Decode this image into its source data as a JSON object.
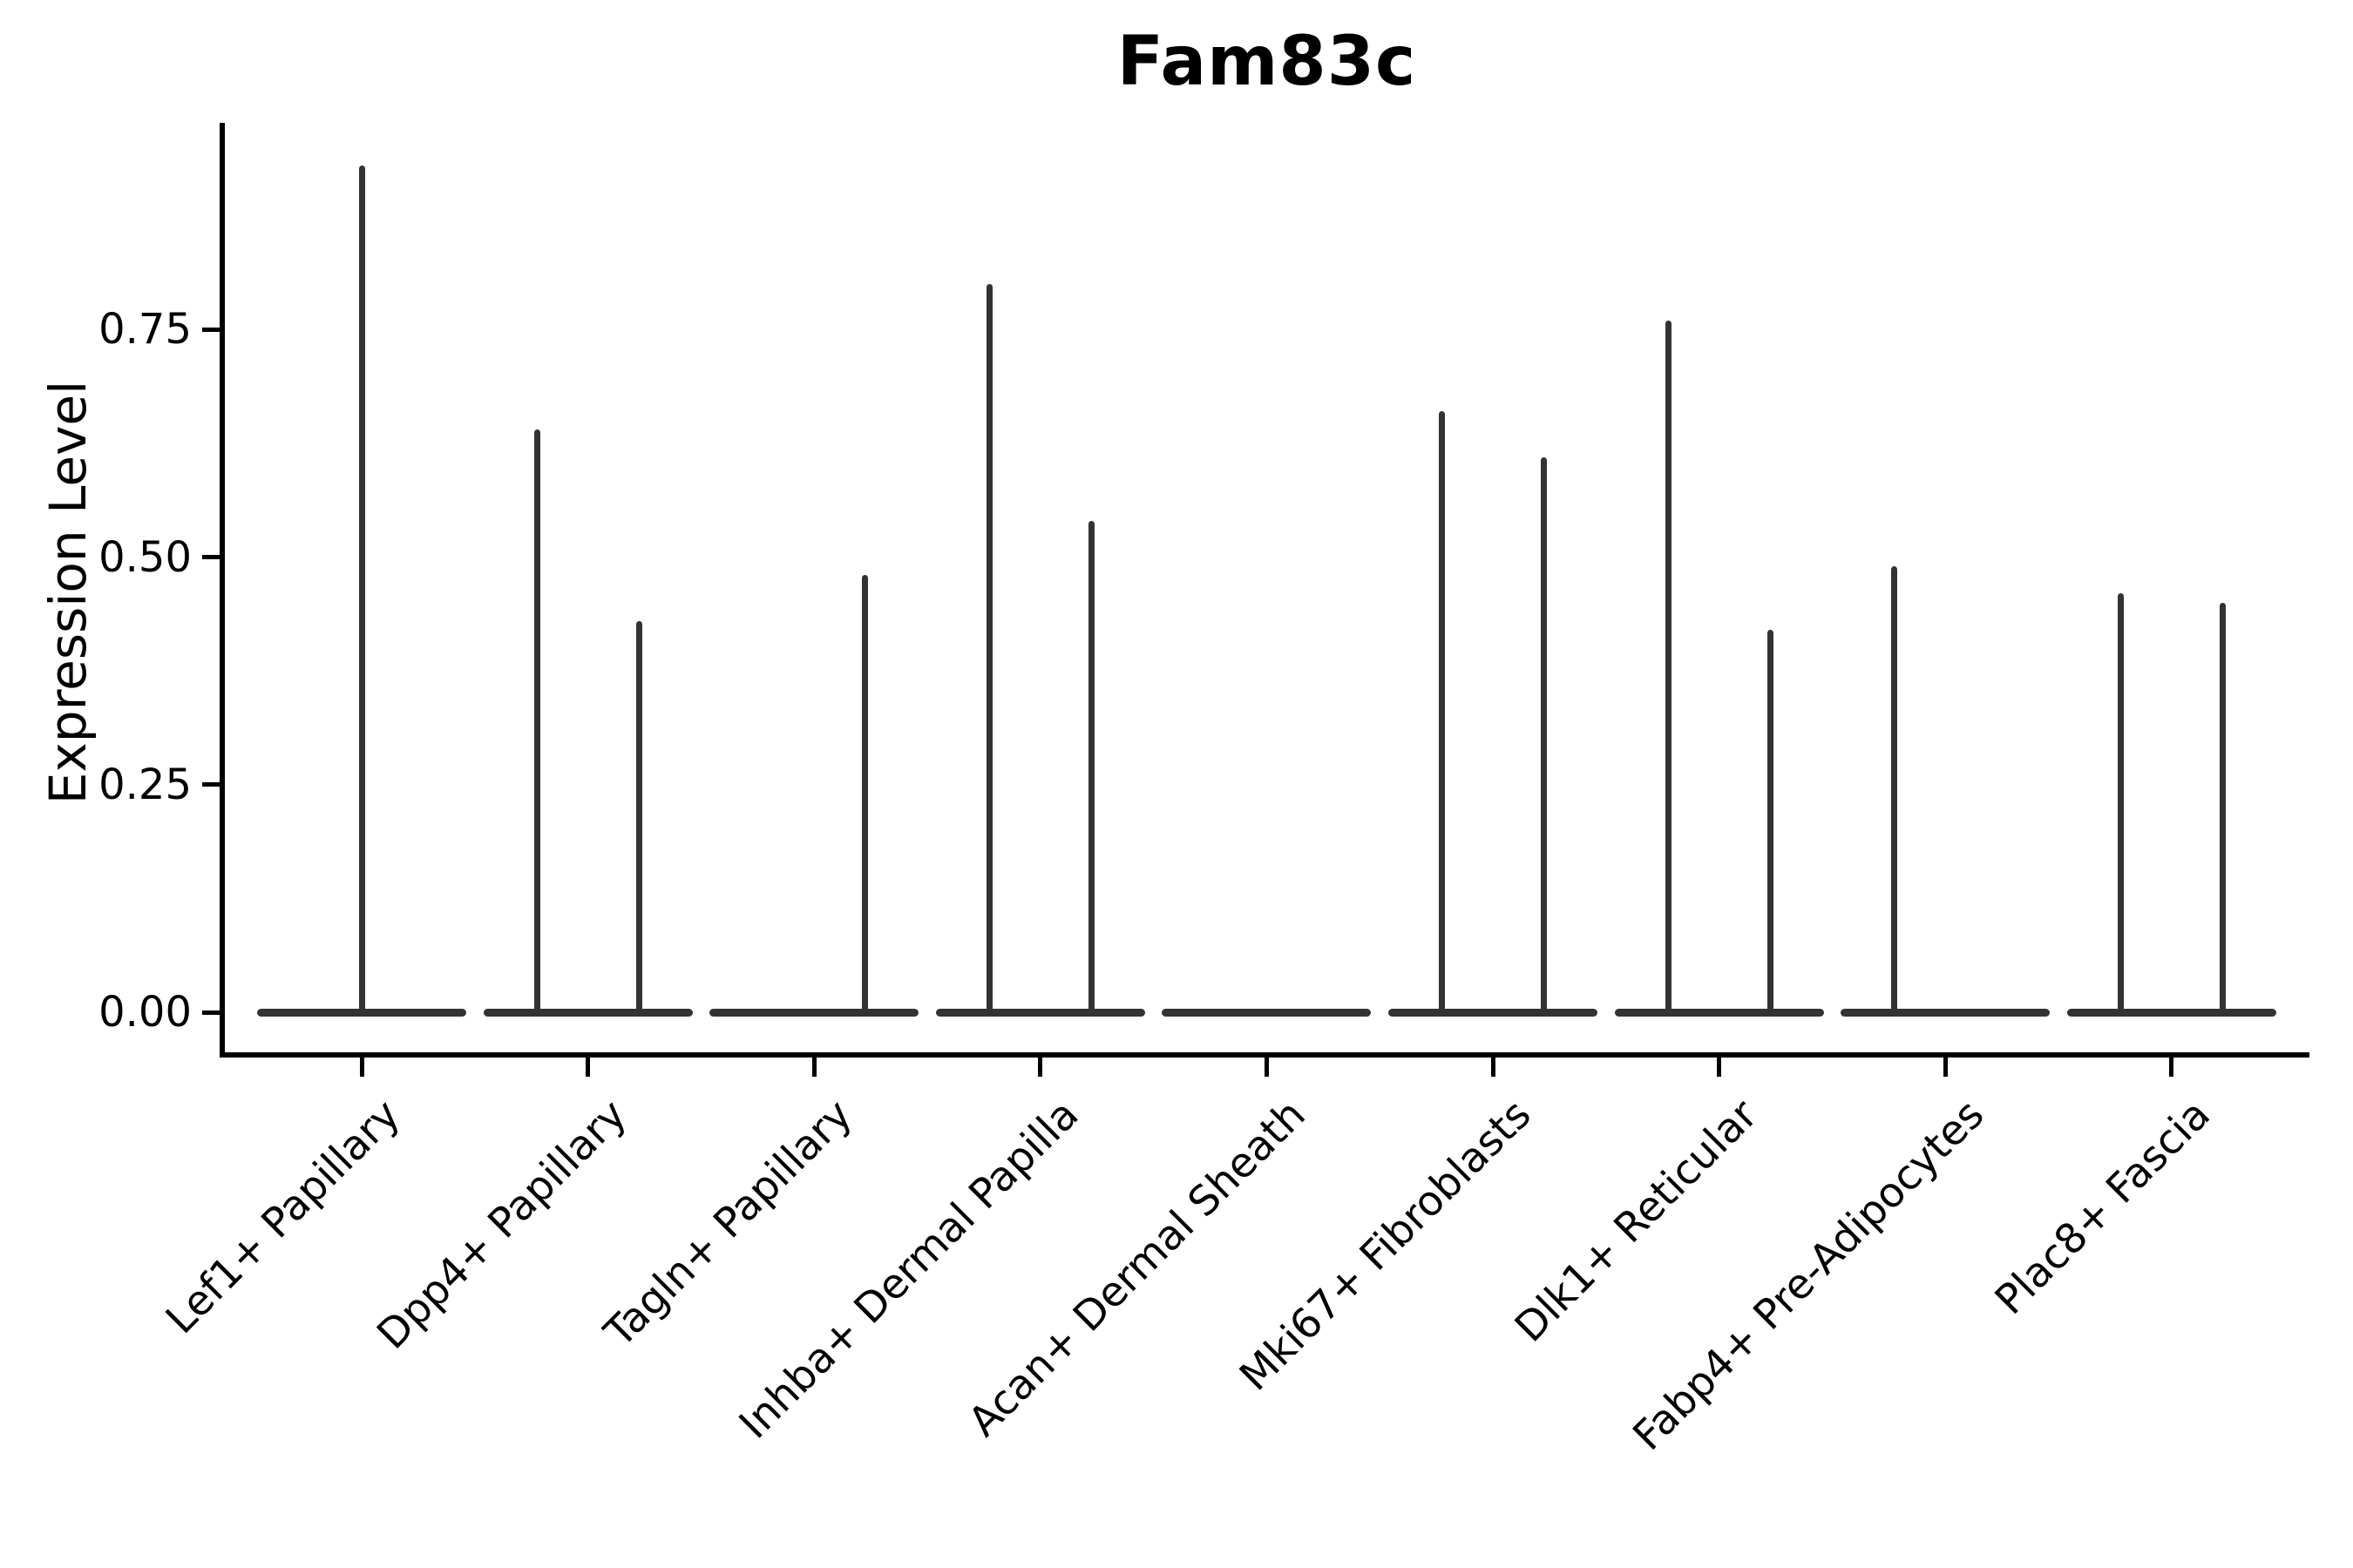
{
  "chart_data": {
    "type": "violin",
    "title": "Fam83c",
    "ylabel": "Expression Level",
    "xlabel": "",
    "grid": false,
    "legend": null,
    "background": "#ffffff",
    "ink_color": "#333333",
    "axis_color": "#000000",
    "ylim": [
      -0.05,
      0.98
    ],
    "ytick_labels": [
      "0.00",
      "0.25",
      "0.50",
      "0.75"
    ],
    "ytick_values": [
      0,
      0.25,
      0.5,
      0.75
    ],
    "baseline_value": 0,
    "categories": [
      "Lef1+ Papillary",
      "Dpp4+ Papillary",
      "Tagln+ Papillary",
      "Inhba+ Dermal Papilla",
      "Acan+ Dermal Sheath",
      "Mki67+ Fibroblasts",
      "Dlk1+ Reticular",
      "Fabp4+ Pre-Adipocytes",
      "Plac8+ Fascia"
    ],
    "violins": [
      {
        "category": "Lef1+ Papillary",
        "base_at_zero": true,
        "spikes": [
          {
            "position": "center",
            "max": 0.93
          }
        ]
      },
      {
        "category": "Dpp4+ Papillary",
        "base_at_zero": true,
        "spikes": [
          {
            "position": "left",
            "max": 0.64
          },
          {
            "position": "right",
            "max": 0.43
          }
        ]
      },
      {
        "category": "Tagln+ Papillary",
        "base_at_zero": true,
        "spikes": [
          {
            "position": "right",
            "max": 0.48
          }
        ]
      },
      {
        "category": "Inhba+ Dermal Papilla",
        "base_at_zero": true,
        "spikes": [
          {
            "position": "left",
            "max": 0.8
          },
          {
            "position": "right",
            "max": 0.54
          }
        ]
      },
      {
        "category": "Acan+ Dermal Sheath",
        "base_at_zero": true,
        "spikes": []
      },
      {
        "category": "Mki67+ Fibroblasts",
        "base_at_zero": true,
        "spikes": [
          {
            "position": "left",
            "max": 0.66
          },
          {
            "position": "right",
            "max": 0.61
          }
        ]
      },
      {
        "category": "Dlk1+ Reticular",
        "base_at_zero": true,
        "spikes": [
          {
            "position": "left",
            "max": 0.76
          },
          {
            "position": "right",
            "max": 0.42
          }
        ]
      },
      {
        "category": "Fabp4+ Pre-Adipocytes",
        "base_at_zero": true,
        "spikes": [
          {
            "position": "left",
            "max": 0.49
          }
        ]
      },
      {
        "category": "Plac8+ Fascia",
        "base_at_zero": true,
        "spikes": [
          {
            "position": "left",
            "max": 0.46
          },
          {
            "position": "right",
            "max": 0.45
          }
        ]
      }
    ]
  }
}
